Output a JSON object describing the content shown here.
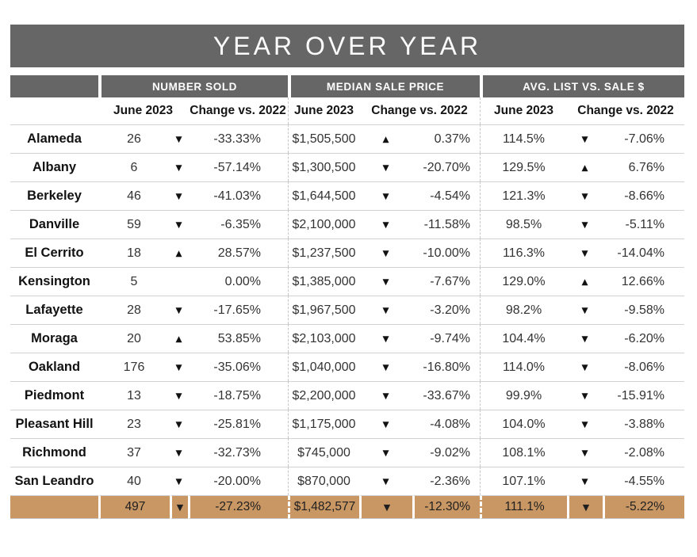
{
  "chart_data": {
    "type": "table",
    "title": "YEAR OVER YEAR",
    "column_groups": [
      "NUMBER SOLD",
      "MEDIAN SALE PRICE",
      "AVG. LIST VS. SALE $"
    ],
    "subcolumns": [
      "June 2023",
      "Change vs. 2022"
    ],
    "rows": [
      {
        "city": "Alameda",
        "number_sold": {
          "june_2023": "26",
          "arrow": "▼",
          "change_vs_2022": "-33.33%"
        },
        "median_sale_price": {
          "june_2023": "$1,505,500",
          "arrow": "▲",
          "change_vs_2022": "0.37%"
        },
        "avg_list_vs_sale": {
          "june_2023": "114.5%",
          "arrow": "▼",
          "change_vs_2022": "-7.06%"
        }
      },
      {
        "city": "Albany",
        "number_sold": {
          "june_2023": "6",
          "arrow": "▼",
          "change_vs_2022": "-57.14%"
        },
        "median_sale_price": {
          "june_2023": "$1,300,500",
          "arrow": "▼",
          "change_vs_2022": "-20.70%"
        },
        "avg_list_vs_sale": {
          "june_2023": "129.5%",
          "arrow": "▲",
          "change_vs_2022": "6.76%"
        }
      },
      {
        "city": "Berkeley",
        "number_sold": {
          "june_2023": "46",
          "arrow": "▼",
          "change_vs_2022": "-41.03%"
        },
        "median_sale_price": {
          "june_2023": "$1,644,500",
          "arrow": "▼",
          "change_vs_2022": "-4.54%"
        },
        "avg_list_vs_sale": {
          "june_2023": "121.3%",
          "arrow": "▼",
          "change_vs_2022": "-8.66%"
        }
      },
      {
        "city": "Danville",
        "number_sold": {
          "june_2023": "59",
          "arrow": "▼",
          "change_vs_2022": "-6.35%"
        },
        "median_sale_price": {
          "june_2023": "$2,100,000",
          "arrow": "▼",
          "change_vs_2022": "-11.58%"
        },
        "avg_list_vs_sale": {
          "june_2023": "98.5%",
          "arrow": "▼",
          "change_vs_2022": "-5.11%"
        }
      },
      {
        "city": "El Cerrito",
        "number_sold": {
          "june_2023": "18",
          "arrow": "▲",
          "change_vs_2022": "28.57%"
        },
        "median_sale_price": {
          "june_2023": "$1,237,500",
          "arrow": "▼",
          "change_vs_2022": "-10.00%"
        },
        "avg_list_vs_sale": {
          "june_2023": "116.3%",
          "arrow": "▼",
          "change_vs_2022": "-14.04%"
        }
      },
      {
        "city": "Kensington",
        "number_sold": {
          "june_2023": "5",
          "arrow": "",
          "change_vs_2022": "0.00%"
        },
        "median_sale_price": {
          "june_2023": "$1,385,000",
          "arrow": "▼",
          "change_vs_2022": "-7.67%"
        },
        "avg_list_vs_sale": {
          "june_2023": "129.0%",
          "arrow": "▲",
          "change_vs_2022": "12.66%"
        }
      },
      {
        "city": "Lafayette",
        "number_sold": {
          "june_2023": "28",
          "arrow": "▼",
          "change_vs_2022": "-17.65%"
        },
        "median_sale_price": {
          "june_2023": "$1,967,500",
          "arrow": "▼",
          "change_vs_2022": "-3.20%"
        },
        "avg_list_vs_sale": {
          "june_2023": "98.2%",
          "arrow": "▼",
          "change_vs_2022": "-9.58%"
        }
      },
      {
        "city": "Moraga",
        "number_sold": {
          "june_2023": "20",
          "arrow": "▲",
          "change_vs_2022": "53.85%"
        },
        "median_sale_price": {
          "june_2023": "$2,103,000",
          "arrow": "▼",
          "change_vs_2022": "-9.74%"
        },
        "avg_list_vs_sale": {
          "june_2023": "104.4%",
          "arrow": "▼",
          "change_vs_2022": "-6.20%"
        }
      },
      {
        "city": "Oakland",
        "number_sold": {
          "june_2023": "176",
          "arrow": "▼",
          "change_vs_2022": "-35.06%"
        },
        "median_sale_price": {
          "june_2023": "$1,040,000",
          "arrow": "▼",
          "change_vs_2022": "-16.80%"
        },
        "avg_list_vs_sale": {
          "june_2023": "114.0%",
          "arrow": "▼",
          "change_vs_2022": "-8.06%"
        }
      },
      {
        "city": "Piedmont",
        "number_sold": {
          "june_2023": "13",
          "arrow": "▼",
          "change_vs_2022": "-18.75%"
        },
        "median_sale_price": {
          "june_2023": "$2,200,000",
          "arrow": "▼",
          "change_vs_2022": "-33.67%"
        },
        "avg_list_vs_sale": {
          "june_2023": "99.9%",
          "arrow": "▼",
          "change_vs_2022": "-15.91%"
        }
      },
      {
        "city": "Pleasant Hill",
        "number_sold": {
          "june_2023": "23",
          "arrow": "▼",
          "change_vs_2022": "-25.81%"
        },
        "median_sale_price": {
          "june_2023": "$1,175,000",
          "arrow": "▼",
          "change_vs_2022": "-4.08%"
        },
        "avg_list_vs_sale": {
          "june_2023": "104.0%",
          "arrow": "▼",
          "change_vs_2022": "-3.88%"
        }
      },
      {
        "city": "Richmond",
        "number_sold": {
          "june_2023": "37",
          "arrow": "▼",
          "change_vs_2022": "-32.73%"
        },
        "median_sale_price": {
          "june_2023": "$745,000",
          "arrow": "▼",
          "change_vs_2022": "-9.02%"
        },
        "avg_list_vs_sale": {
          "june_2023": "108.1%",
          "arrow": "▼",
          "change_vs_2022": "-2.08%"
        }
      },
      {
        "city": "San Leandro",
        "number_sold": {
          "june_2023": "40",
          "arrow": "▼",
          "change_vs_2022": "-20.00%"
        },
        "median_sale_price": {
          "june_2023": "$870,000",
          "arrow": "▼",
          "change_vs_2022": "-2.36%"
        },
        "avg_list_vs_sale": {
          "june_2023": "107.1%",
          "arrow": "▼",
          "change_vs_2022": "-4.55%"
        }
      }
    ],
    "totals": {
      "city": "",
      "number_sold": {
        "june_2023": "497",
        "arrow": "▼",
        "change_vs_2022": "-27.23%"
      },
      "median_sale_price": {
        "june_2023": "$1,482,577",
        "arrow": "▼",
        "change_vs_2022": "-12.30%"
      },
      "avg_list_vs_sale": {
        "june_2023": "111.1%",
        "arrow": "▼",
        "change_vs_2022": "-5.22%"
      }
    }
  },
  "colors": {
    "header_gray": "#666666",
    "totals_tan": "#c99764",
    "row_divider": "#d2d2d2",
    "title_text": "#fcfcfc",
    "body_text": "#333333"
  }
}
